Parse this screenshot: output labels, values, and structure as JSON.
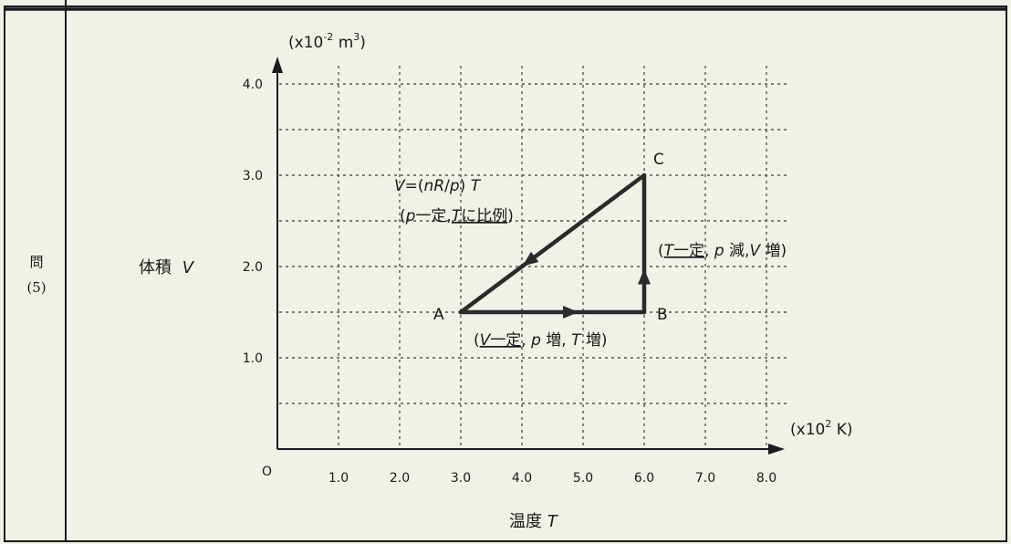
{
  "row_header": {
    "label": "問",
    "number": "(5)"
  },
  "y_title": {
    "name": "体積",
    "var": "V"
  },
  "x_title": {
    "name": "温度",
    "var": "T"
  },
  "y_unit": {
    "pre": "(x10",
    "exp": "-2",
    "mid": " m",
    "exp2": "3",
    "post": ")"
  },
  "x_unit": {
    "pre": "(x10",
    "exp": "2",
    "post": " K)"
  },
  "origin": "O",
  "chart_data": {
    "type": "line",
    "x_ticks": [
      "1.0",
      "2.0",
      "3.0",
      "4.0",
      "5.0",
      "6.0",
      "7.0",
      "8.0"
    ],
    "y_ticks": [
      "1.0",
      "2.0",
      "3.0",
      "4.0"
    ],
    "xlim": [
      0,
      8.0
    ],
    "ylim": [
      0,
      4.0
    ],
    "grid": true,
    "points": [
      {
        "name": "A",
        "x": 3.0,
        "y": 1.5
      },
      {
        "name": "B",
        "x": 6.0,
        "y": 1.5
      },
      {
        "name": "C",
        "x": 6.0,
        "y": 3.0
      }
    ],
    "cycle": [
      "A",
      "B",
      "C",
      "A"
    ],
    "annotations": {
      "ca_formula": {
        "v": "V",
        "eq": "=(",
        "n": "n",
        "r": "R",
        "slash": "/",
        "p": "p",
        "close": ") ",
        "t": "T"
      },
      "ca_cond": {
        "open": "(",
        "p": "p",
        "const": "一定,",
        "t": "T",
        "prop": "に比例",
        "close": ")"
      },
      "bc_cond": {
        "open": "(",
        "t": "T",
        "const": "一定",
        "sep": ", ",
        "p": "p",
        "dec": " 減,",
        "v": "V",
        "inc": " 増)"
      },
      "ab_cond": {
        "open": "(",
        "v": "V",
        "const": "一定",
        "sep": ", ",
        "p": "p",
        "inc1": " 増, ",
        "t": "T",
        "inc2": " 増)"
      }
    }
  }
}
